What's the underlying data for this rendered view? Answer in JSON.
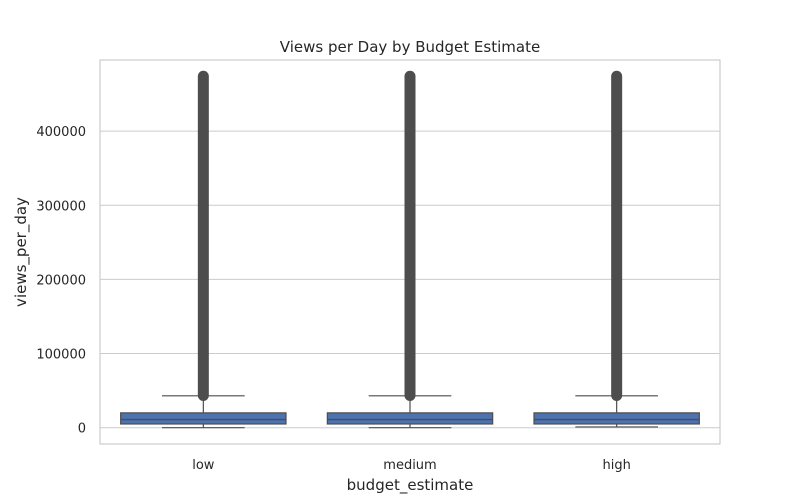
{
  "chart_data": {
    "type": "box",
    "title": "Views per Day by Budget Estimate",
    "xlabel": "budget_estimate",
    "ylabel": "views_per_day",
    "categories": [
      "low",
      "medium",
      "high"
    ],
    "y_ticks": [
      0,
      100000,
      200000,
      300000,
      400000
    ],
    "y_tick_labels": [
      "0",
      "100000",
      "200000",
      "300000",
      "400000"
    ],
    "ylim": [
      -22000,
      496000
    ],
    "grid": true,
    "box_color": "#4c72b0",
    "outlier_color": "#4d4d4d",
    "boxes": [
      {
        "category": "low",
        "whisker_low": 0,
        "q1": 5000,
        "median": 11000,
        "q3": 20000,
        "whisker_high": 43000,
        "outlier_min": 43500,
        "outlier_max": 474000
      },
      {
        "category": "medium",
        "whisker_low": 0,
        "q1": 5000,
        "median": 11000,
        "q3": 20000,
        "whisker_high": 43000,
        "outlier_min": 43500,
        "outlier_max": 474000
      },
      {
        "category": "high",
        "whisker_low": 1000,
        "q1": 5000,
        "median": 11000,
        "q3": 20000,
        "whisker_high": 43000,
        "outlier_min": 43500,
        "outlier_max": 474000
      }
    ]
  }
}
